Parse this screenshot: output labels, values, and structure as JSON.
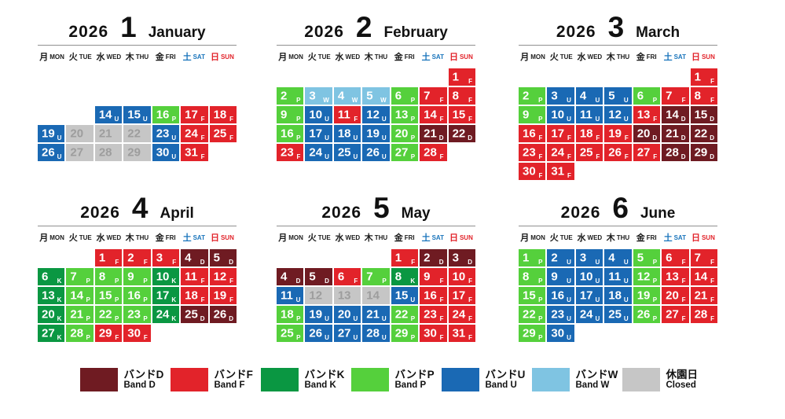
{
  "page": {
    "background": "#ffffff"
  },
  "chart_data": {
    "type": "heatmap",
    "description_visible_text_only": true,
    "band_colors": {
      "D": "#6f1b22",
      "F": "#e2232a",
      "K": "#0a9742",
      "P": "#55d03c",
      "U": "#1a69b4",
      "W": "#7fc4e2",
      "C": "#c6c6c6"
    },
    "closed_text_color": "#9d9d9d",
    "weekday_headers": [
      {
        "kanji": "月",
        "en": "MON",
        "color": "#1a1a1a"
      },
      {
        "kanji": "火",
        "en": "TUE",
        "color": "#1a1a1a"
      },
      {
        "kanji": "水",
        "en": "WED",
        "color": "#1a1a1a"
      },
      {
        "kanji": "木",
        "en": "THU",
        "color": "#1a1a1a"
      },
      {
        "kanji": "金",
        "en": "FRI",
        "color": "#1a1a1a"
      },
      {
        "kanji": "土",
        "en": "SAT",
        "color": "#1a75bc"
      },
      {
        "kanji": "日",
        "en": "SUN",
        "color": "#e2232a"
      }
    ],
    "months": [
      {
        "year": "2026",
        "number": "1",
        "name": "January",
        "weeks": [
          [
            null,
            null,
            null,
            null,
            null,
            null,
            null
          ],
          [
            null,
            null,
            null,
            null,
            null,
            null,
            null
          ],
          [
            null,
            null,
            {
              "d": 14,
              "b": "U"
            },
            {
              "d": 15,
              "b": "U"
            },
            {
              "d": 16,
              "b": "P"
            },
            {
              "d": 17,
              "b": "F"
            },
            {
              "d": 18,
              "b": "F"
            }
          ],
          [
            {
              "d": 19,
              "b": "U"
            },
            {
              "d": 20,
              "b": "C"
            },
            {
              "d": 21,
              "b": "C"
            },
            {
              "d": 22,
              "b": "C"
            },
            {
              "d": 23,
              "b": "U"
            },
            {
              "d": 24,
              "b": "F"
            },
            {
              "d": 25,
              "b": "F"
            }
          ],
          [
            {
              "d": 26,
              "b": "U"
            },
            {
              "d": 27,
              "b": "C"
            },
            {
              "d": 28,
              "b": "C"
            },
            {
              "d": 29,
              "b": "C"
            },
            {
              "d": 30,
              "b": "U"
            },
            {
              "d": 31,
              "b": "F"
            },
            null
          ]
        ]
      },
      {
        "year": "2026",
        "number": "2",
        "name": "February",
        "weeks": [
          [
            null,
            null,
            null,
            null,
            null,
            null,
            {
              "d": 1,
              "b": "F"
            }
          ],
          [
            {
              "d": 2,
              "b": "P"
            },
            {
              "d": 3,
              "b": "W"
            },
            {
              "d": 4,
              "b": "W"
            },
            {
              "d": 5,
              "b": "W"
            },
            {
              "d": 6,
              "b": "P"
            },
            {
              "d": 7,
              "b": "F"
            },
            {
              "d": 8,
              "b": "F"
            }
          ],
          [
            {
              "d": 9,
              "b": "P"
            },
            {
              "d": 10,
              "b": "U"
            },
            {
              "d": 11,
              "b": "F"
            },
            {
              "d": 12,
              "b": "U"
            },
            {
              "d": 13,
              "b": "P"
            },
            {
              "d": 14,
              "b": "F"
            },
            {
              "d": 15,
              "b": "F"
            }
          ],
          [
            {
              "d": 16,
              "b": "P"
            },
            {
              "d": 17,
              "b": "U"
            },
            {
              "d": 18,
              "b": "U"
            },
            {
              "d": 19,
              "b": "U"
            },
            {
              "d": 20,
              "b": "P"
            },
            {
              "d": 21,
              "b": "D"
            },
            {
              "d": 22,
              "b": "D"
            }
          ],
          [
            {
              "d": 23,
              "b": "F"
            },
            {
              "d": 24,
              "b": "U"
            },
            {
              "d": 25,
              "b": "U"
            },
            {
              "d": 26,
              "b": "U"
            },
            {
              "d": 27,
              "b": "P"
            },
            {
              "d": 28,
              "b": "F"
            },
            null
          ]
        ]
      },
      {
        "year": "2026",
        "number": "3",
        "name": "March",
        "weeks": [
          [
            null,
            null,
            null,
            null,
            null,
            null,
            {
              "d": 1,
              "b": "F"
            }
          ],
          [
            {
              "d": 2,
              "b": "P"
            },
            {
              "d": 3,
              "b": "U"
            },
            {
              "d": 4,
              "b": "U"
            },
            {
              "d": 5,
              "b": "U"
            },
            {
              "d": 6,
              "b": "P"
            },
            {
              "d": 7,
              "b": "F"
            },
            {
              "d": 8,
              "b": "F"
            }
          ],
          [
            {
              "d": 9,
              "b": "P"
            },
            {
              "d": 10,
              "b": "U"
            },
            {
              "d": 11,
              "b": "U"
            },
            {
              "d": 12,
              "b": "U"
            },
            {
              "d": 13,
              "b": "F"
            },
            {
              "d": 14,
              "b": "D"
            },
            {
              "d": 15,
              "b": "D"
            }
          ],
          [
            {
              "d": 16,
              "b": "F"
            },
            {
              "d": 17,
              "b": "F"
            },
            {
              "d": 18,
              "b": "F"
            },
            {
              "d": 19,
              "b": "F"
            },
            {
              "d": 20,
              "b": "D"
            },
            {
              "d": 21,
              "b": "D"
            },
            {
              "d": 22,
              "b": "D"
            }
          ],
          [
            {
              "d": 23,
              "b": "F"
            },
            {
              "d": 24,
              "b": "F"
            },
            {
              "d": 25,
              "b": "F"
            },
            {
              "d": 26,
              "b": "F"
            },
            {
              "d": 27,
              "b": "F"
            },
            {
              "d": 28,
              "b": "D"
            },
            {
              "d": 29,
              "b": "D"
            }
          ],
          [
            {
              "d": 30,
              "b": "F"
            },
            {
              "d": 31,
              "b": "F"
            },
            null,
            null,
            null,
            null,
            null
          ]
        ]
      },
      {
        "year": "2026",
        "number": "4",
        "name": "April",
        "weeks": [
          [
            null,
            null,
            {
              "d": 1,
              "b": "F"
            },
            {
              "d": 2,
              "b": "F"
            },
            {
              "d": 3,
              "b": "F"
            },
            {
              "d": 4,
              "b": "D"
            },
            {
              "d": 5,
              "b": "D"
            }
          ],
          [
            {
              "d": 6,
              "b": "K"
            },
            {
              "d": 7,
              "b": "P"
            },
            {
              "d": 8,
              "b": "P"
            },
            {
              "d": 9,
              "b": "P"
            },
            {
              "d": 10,
              "b": "K"
            },
            {
              "d": 11,
              "b": "F"
            },
            {
              "d": 12,
              "b": "F"
            }
          ],
          [
            {
              "d": 13,
              "b": "K"
            },
            {
              "d": 14,
              "b": "P"
            },
            {
              "d": 15,
              "b": "P"
            },
            {
              "d": 16,
              "b": "P"
            },
            {
              "d": 17,
              "b": "K"
            },
            {
              "d": 18,
              "b": "F"
            },
            {
              "d": 19,
              "b": "F"
            }
          ],
          [
            {
              "d": 20,
              "b": "K"
            },
            {
              "d": 21,
              "b": "P"
            },
            {
              "d": 22,
              "b": "P"
            },
            {
              "d": 23,
              "b": "P"
            },
            {
              "d": 24,
              "b": "K"
            },
            {
              "d": 25,
              "b": "D"
            },
            {
              "d": 26,
              "b": "D"
            }
          ],
          [
            {
              "d": 27,
              "b": "K"
            },
            {
              "d": 28,
              "b": "P"
            },
            {
              "d": 29,
              "b": "F"
            },
            {
              "d": 30,
              "b": "F"
            },
            null,
            null,
            null
          ]
        ]
      },
      {
        "year": "2026",
        "number": "5",
        "name": "May",
        "weeks": [
          [
            null,
            null,
            null,
            null,
            {
              "d": 1,
              "b": "F"
            },
            {
              "d": 2,
              "b": "D"
            },
            {
              "d": 3,
              "b": "D"
            }
          ],
          [
            {
              "d": 4,
              "b": "D"
            },
            {
              "d": 5,
              "b": "D"
            },
            {
              "d": 6,
              "b": "F"
            },
            {
              "d": 7,
              "b": "P"
            },
            {
              "d": 8,
              "b": "K"
            },
            {
              "d": 9,
              "b": "F"
            },
            {
              "d": 10,
              "b": "F"
            }
          ],
          [
            {
              "d": 11,
              "b": "U"
            },
            {
              "d": 12,
              "b": "C"
            },
            {
              "d": 13,
              "b": "C"
            },
            {
              "d": 14,
              "b": "C"
            },
            {
              "d": 15,
              "b": "U"
            },
            {
              "d": 16,
              "b": "F"
            },
            {
              "d": 17,
              "b": "F"
            }
          ],
          [
            {
              "d": 18,
              "b": "P"
            },
            {
              "d": 19,
              "b": "U"
            },
            {
              "d": 20,
              "b": "U"
            },
            {
              "d": 21,
              "b": "U"
            },
            {
              "d": 22,
              "b": "P"
            },
            {
              "d": 23,
              "b": "F"
            },
            {
              "d": 24,
              "b": "F"
            }
          ],
          [
            {
              "d": 25,
              "b": "P"
            },
            {
              "d": 26,
              "b": "U"
            },
            {
              "d": 27,
              "b": "U"
            },
            {
              "d": 28,
              "b": "U"
            },
            {
              "d": 29,
              "b": "P"
            },
            {
              "d": 30,
              "b": "F"
            },
            {
              "d": 31,
              "b": "F"
            }
          ]
        ]
      },
      {
        "year": "2026",
        "number": "6",
        "name": "June",
        "weeks": [
          [
            {
              "d": 1,
              "b": "P"
            },
            {
              "d": 2,
              "b": "U"
            },
            {
              "d": 3,
              "b": "U"
            },
            {
              "d": 4,
              "b": "U"
            },
            {
              "d": 5,
              "b": "P"
            },
            {
              "d": 6,
              "b": "F"
            },
            {
              "d": 7,
              "b": "F"
            }
          ],
          [
            {
              "d": 8,
              "b": "P"
            },
            {
              "d": 9,
              "b": "U"
            },
            {
              "d": 10,
              "b": "U"
            },
            {
              "d": 11,
              "b": "U"
            },
            {
              "d": 12,
              "b": "P"
            },
            {
              "d": 13,
              "b": "F"
            },
            {
              "d": 14,
              "b": "F"
            }
          ],
          [
            {
              "d": 15,
              "b": "P"
            },
            {
              "d": 16,
              "b": "U"
            },
            {
              "d": 17,
              "b": "U"
            },
            {
              "d": 18,
              "b": "U"
            },
            {
              "d": 19,
              "b": "P"
            },
            {
              "d": 20,
              "b": "F"
            },
            {
              "d": 21,
              "b": "F"
            }
          ],
          [
            {
              "d": 22,
              "b": "P"
            },
            {
              "d": 23,
              "b": "U"
            },
            {
              "d": 24,
              "b": "U"
            },
            {
              "d": 25,
              "b": "U"
            },
            {
              "d": 26,
              "b": "P"
            },
            {
              "d": 27,
              "b": "F"
            },
            {
              "d": 28,
              "b": "F"
            }
          ],
          [
            {
              "d": 29,
              "b": "P"
            },
            {
              "d": 30,
              "b": "U"
            },
            null,
            null,
            null,
            null,
            null
          ]
        ]
      }
    ],
    "legend": [
      {
        "band": "D",
        "jp": "バンドD",
        "en": "Band D",
        "color": "#6f1b22"
      },
      {
        "band": "F",
        "jp": "バンドF",
        "en": "Band F",
        "color": "#e2232a"
      },
      {
        "band": "K",
        "jp": "バンドK",
        "en": "Band K",
        "color": "#0a9742"
      },
      {
        "band": "P",
        "jp": "バンドP",
        "en": "Band P",
        "color": "#55d03c"
      },
      {
        "band": "U",
        "jp": "バンドU",
        "en": "Band U",
        "color": "#1a69b4"
      },
      {
        "band": "W",
        "jp": "バンドW",
        "en": "Band W",
        "color": "#7fc4e2"
      },
      {
        "band": "C",
        "jp": "休園日",
        "en": "Closed",
        "color": "#c6c6c6"
      }
    ],
    "legend_position": "bottom",
    "grid": "off"
  }
}
